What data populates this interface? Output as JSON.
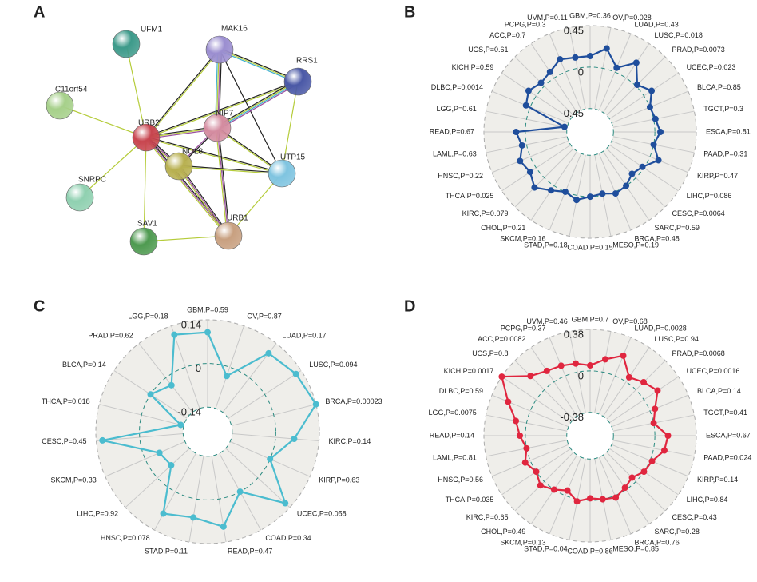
{
  "panels": [
    "A",
    "B",
    "C",
    "D"
  ],
  "network": {
    "nodes": [
      {
        "label": "UFM1"
      },
      {
        "label": "MAK16"
      },
      {
        "label": "RRS1"
      },
      {
        "label": "C11orf54"
      },
      {
        "label": "URB2"
      },
      {
        "label": "NIP7"
      },
      {
        "label": "UTP15"
      },
      {
        "label": "NOL8"
      },
      {
        "label": "SNRPC"
      },
      {
        "label": "SAV1"
      },
      {
        "label": "URB1"
      }
    ]
  },
  "chart_data": [
    {
      "type": "radar",
      "color": "#1f4e9c",
      "ylim": [
        -0.45,
        0.45
      ],
      "yticks": [
        0.45,
        0,
        -0.45
      ],
      "categories": [
        "GBM,P=0.36",
        "OV,P=0.028",
        "LUAD,P=0.43",
        "LUSC,P=0.018",
        "PRAD,P=0.0073",
        "UCEC,P=0.023",
        "BLCA,P=0.85",
        "TGCT,P=0.3",
        "ESCA,P=0.81",
        "PAAD,P=0.31",
        "KIRP,P=0.47",
        "LIHC,P=0.086",
        "CESC,P=0.0064",
        "SARC,P=0.59",
        "BRCA,P=0.48",
        "MESO,P=0.19",
        "COAD,P=0.15",
        "STAD,P=0.18",
        "SKCM,P=0.16",
        "CHOL,P=0.21",
        "KIRC,P=0.079",
        "THCA,P=0.025",
        "HNSC,P=0.22",
        "LAML,P=0.63",
        "READ,P=0.67",
        "LGG,P=0.61",
        "DLBC,P=0.0014",
        "KICH,P=0.59",
        "UCS,P=0.61",
        "ACC,P=0.7",
        "PCPG,P=0.3",
        "UVM,P=0.11"
      ],
      "values": [
        0.12,
        0.22,
        0.05,
        0.2,
        0.02,
        0.1,
        0.0,
        0.02,
        0.06,
        0.0,
        0.1,
        -0.02,
        -0.06,
        0.0,
        0.02,
        -0.02,
        0.0,
        0.05,
        0.0,
        0.06,
        0.15,
        0.08,
        0.12,
        0.05,
        0.1,
        -0.42,
        0.05,
        0.1,
        0.05,
        0.08,
        0.15,
        0.12
      ]
    },
    {
      "type": "radar",
      "color": "#4bbccf",
      "ylim": [
        -0.14,
        0.14
      ],
      "yticks": [
        0.14,
        0,
        -0.14
      ],
      "categories": [
        "GBM,P=0.59",
        "OV,P=0.87",
        "LUAD,P=0.17",
        "LUSC,P=0.094",
        "BRCA,P=0.00023",
        "KIRC,P=0.14",
        "KIRP,P=0.63",
        "UCEC,P=0.058",
        "COAD,P=0.34",
        "READ,P=0.47",
        "STAD,P=0.11",
        "HNSC,P=0.078",
        "LIHC,P=0.92",
        "SKCM,P=0.33",
        "CESC,P=0.45",
        "THCA,P=0.018",
        "BLCA,P=0.14",
        "PRAD,P=0.62",
        "LGG,P=0.18"
      ],
      "values": [
        0.1,
        -0.03,
        0.1,
        0.12,
        0.14,
        0.06,
        0.0,
        0.12,
        0.0,
        0.09,
        0.06,
        0.08,
        -0.06,
        -0.05,
        0.12,
        -0.13,
        0.0,
        -0.03,
        0.11
      ]
    },
    {
      "type": "radar",
      "color": "#e0263f",
      "ylim": [
        -0.38,
        0.38
      ],
      "yticks": [
        0.38,
        0,
        -0.38
      ],
      "categories": [
        "GBM,P=0.7",
        "OV,P=0.68",
        "LUAD,P=0.0028",
        "LUSC,P=0.94",
        "PRAD,P=0.0068",
        "UCEC,P=0.0016",
        "BLCA,P=0.14",
        "TGCT,P=0.41",
        "ESCA,P=0.67",
        "PAAD,P=0.024",
        "KIRP,P=0.14",
        "LIHC,P=0.84",
        "CESC,P=0.43",
        "SARC,P=0.28",
        "BRCA,P=0.76",
        "MESO,P=0.85",
        "COAD,P=0.86",
        "STAD,P=0.04",
        "SKCM,P=0.13",
        "CHOL,P=0.49",
        "KIRC,P=0.65",
        "THCA,P=0.035",
        "HNSC,P=0.56",
        "LAML,P=0.81",
        "READ,P=0.14",
        "LGG,P=0.0075",
        "DLBC,P=0.59",
        "KICH,P=0.0017",
        "UCS,P=0.8",
        "ACC,P=0.0082",
        "PCPG,P=0.37",
        "UVM,P=0.46"
      ],
      "values": [
        0.05,
        0.12,
        0.2,
        0.05,
        0.1,
        0.15,
        0.05,
        0.0,
        0.12,
        0.1,
        0.02,
        0.0,
        -0.05,
        -0.02,
        0.02,
        0.0,
        -0.02,
        0.02,
        -0.05,
        0.0,
        0.05,
        0.0,
        0.05,
        0.0,
        0.05,
        0.1,
        0.22,
        0.38,
        0.18,
        0.12,
        0.1,
        0.08
      ]
    }
  ]
}
